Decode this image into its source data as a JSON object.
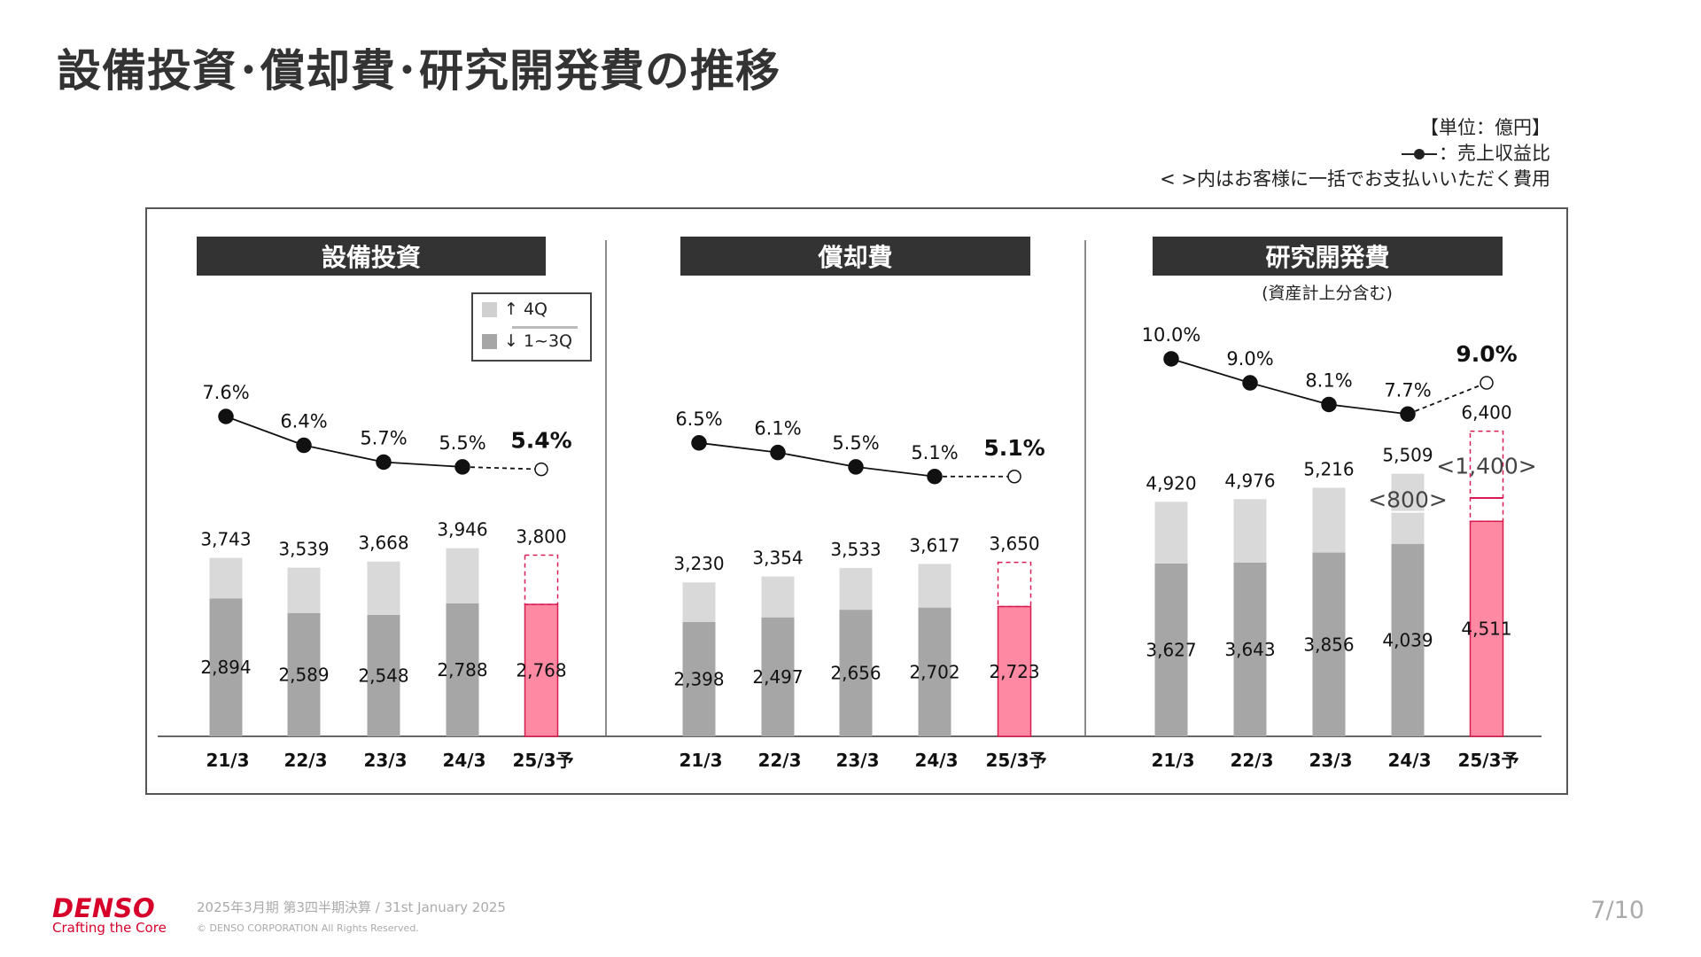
{
  "title": "設備投資･償却費･研究開発費の推移",
  "notes": {
    "unit": "【単位：億円】",
    "line_legend": "：売上収益比",
    "bracket_note": "< >内はお客様に一括でお支払いいただく費用"
  },
  "legend": {
    "upper": "↑ 4Q",
    "lower": "↓ 1~3Q"
  },
  "colors": {
    "q13": "#a6a6a6",
    "q4": "#d9d9d9",
    "forecast_fill": "#fd8aa2",
    "forecast_border": "#d81b50",
    "header_bg": "#333333"
  },
  "chart_data": [
    {
      "type": "bar",
      "title": "設備投資",
      "categories": [
        "21/3",
        "22/3",
        "23/3",
        "24/3",
        "25/3予"
      ],
      "series": [
        {
          "name": "1~3Q",
          "values": [
            2894,
            2589,
            2548,
            2788,
            2768
          ]
        },
        {
          "name": "4Q",
          "values": [
            849,
            950,
            1120,
            1158,
            1032
          ]
        }
      ],
      "totals": [
        3743,
        3539,
        3668,
        3946,
        3800
      ],
      "labels_total": [
        "3,743",
        "3,539",
        "3,668",
        "3,946",
        "3,800"
      ],
      "labels_q13": [
        "2,894",
        "2,589",
        "2,548",
        "2,788",
        "2,768"
      ],
      "ratio_pct": [
        7.6,
        6.4,
        5.7,
        5.5,
        5.4
      ],
      "labels_ratio": [
        "7.6%",
        "6.4%",
        "5.7%",
        "5.5%",
        "5.4%"
      ],
      "forecast_index": 4
    },
    {
      "type": "bar",
      "title": "償却費",
      "categories": [
        "21/3",
        "22/3",
        "23/3",
        "24/3",
        "25/3予"
      ],
      "series": [
        {
          "name": "1~3Q",
          "values": [
            2398,
            2497,
            2656,
            2702,
            2723
          ]
        },
        {
          "name": "4Q",
          "values": [
            832,
            857,
            877,
            915,
            927
          ]
        }
      ],
      "totals": [
        3230,
        3354,
        3533,
        3617,
        3650
      ],
      "labels_total": [
        "3,230",
        "3,354",
        "3,533",
        "3,617",
        "3,650"
      ],
      "labels_q13": [
        "2,398",
        "2,497",
        "2,656",
        "2,702",
        "2,723"
      ],
      "ratio_pct": [
        6.5,
        6.1,
        5.5,
        5.1,
        5.1
      ],
      "labels_ratio": [
        "6.5%",
        "6.1%",
        "5.5%",
        "5.1%",
        "5.1%"
      ],
      "forecast_index": 4
    },
    {
      "type": "bar",
      "title": "研究開発費",
      "subtitle": "(資産計上分含む)",
      "categories": [
        "21/3",
        "22/3",
        "23/3",
        "24/3",
        "25/3予"
      ],
      "series": [
        {
          "name": "1~3Q",
          "values": [
            3627,
            3643,
            3856,
            4039,
            4511
          ]
        },
        {
          "name": "4Q",
          "values": [
            1293,
            1333,
            1360,
            1470,
            1889
          ]
        }
      ],
      "totals": [
        4920,
        4976,
        5216,
        5509,
        6400
      ],
      "labels_total": [
        "4,920",
        "4,976",
        "5,216",
        "5,509",
        "6,400"
      ],
      "labels_q13": [
        "3,627",
        "3,643",
        "3,856",
        "4,039",
        "4,511"
      ],
      "ratio_pct": [
        10.0,
        9.0,
        8.1,
        7.7,
        9.0
      ],
      "labels_ratio": [
        "10.0%",
        "9.0%",
        "8.1%",
        "7.7%",
        "9.0%"
      ],
      "customer_cost": [
        null,
        null,
        null,
        800,
        1400
      ],
      "labels_customer_cost": [
        null,
        null,
        null,
        "<800>",
        "<1,400>"
      ],
      "forecast_index": 4
    }
  ],
  "footer": {
    "logo": "DENSO",
    "tagline": "Crafting the Core",
    "period": "2025年3月期 第3四半期決算 / 31st January 2025",
    "copyright": "© DENSO CORPORATION All Rights Reserved.",
    "page": "7/10"
  }
}
